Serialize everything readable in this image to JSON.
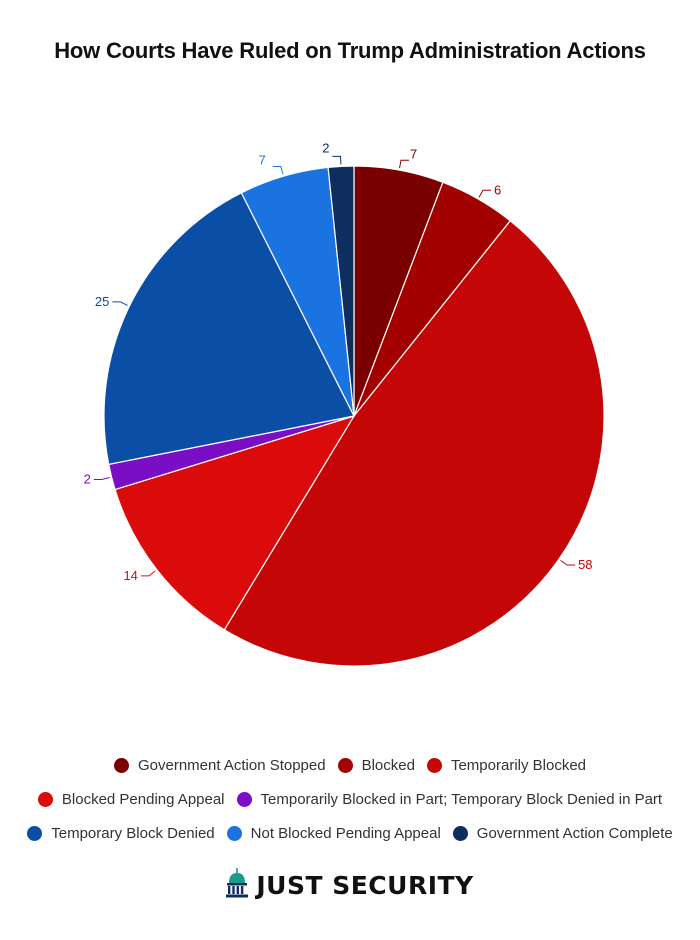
{
  "chart_data": {
    "type": "pie",
    "title": "How Courts Have Ruled on Trump Administration Actions",
    "slices": [
      {
        "name": "Government Action Stopped",
        "value": 7,
        "color": "#7a0000"
      },
      {
        "name": "Blocked",
        "value": 6,
        "color": "#a30000"
      },
      {
        "name": "Temporarily Blocked",
        "value": 58,
        "color": "#c40606"
      },
      {
        "name": "Blocked Pending Appeal",
        "value": 14,
        "color": "#dc0b0b"
      },
      {
        "name": "Temporarily Blocked in Part; Temporary Block Denied in Part",
        "value": 2,
        "color": "#7a0ec4"
      },
      {
        "name": "Temporary Block Denied",
        "value": 25,
        "color": "#0b4ea6"
      },
      {
        "name": "Not Blocked Pending Appeal",
        "value": 7,
        "color": "#1a73e0"
      },
      {
        "name": "Government Action Complete",
        "value": 2,
        "color": "#0d2e5e"
      }
    ],
    "legend_position": "bottom",
    "start_angle": "12 o'clock",
    "direction": "clockwise"
  },
  "brand": {
    "name": "JUST SECURITY",
    "logo_icon": "capitol-dome-icon"
  }
}
